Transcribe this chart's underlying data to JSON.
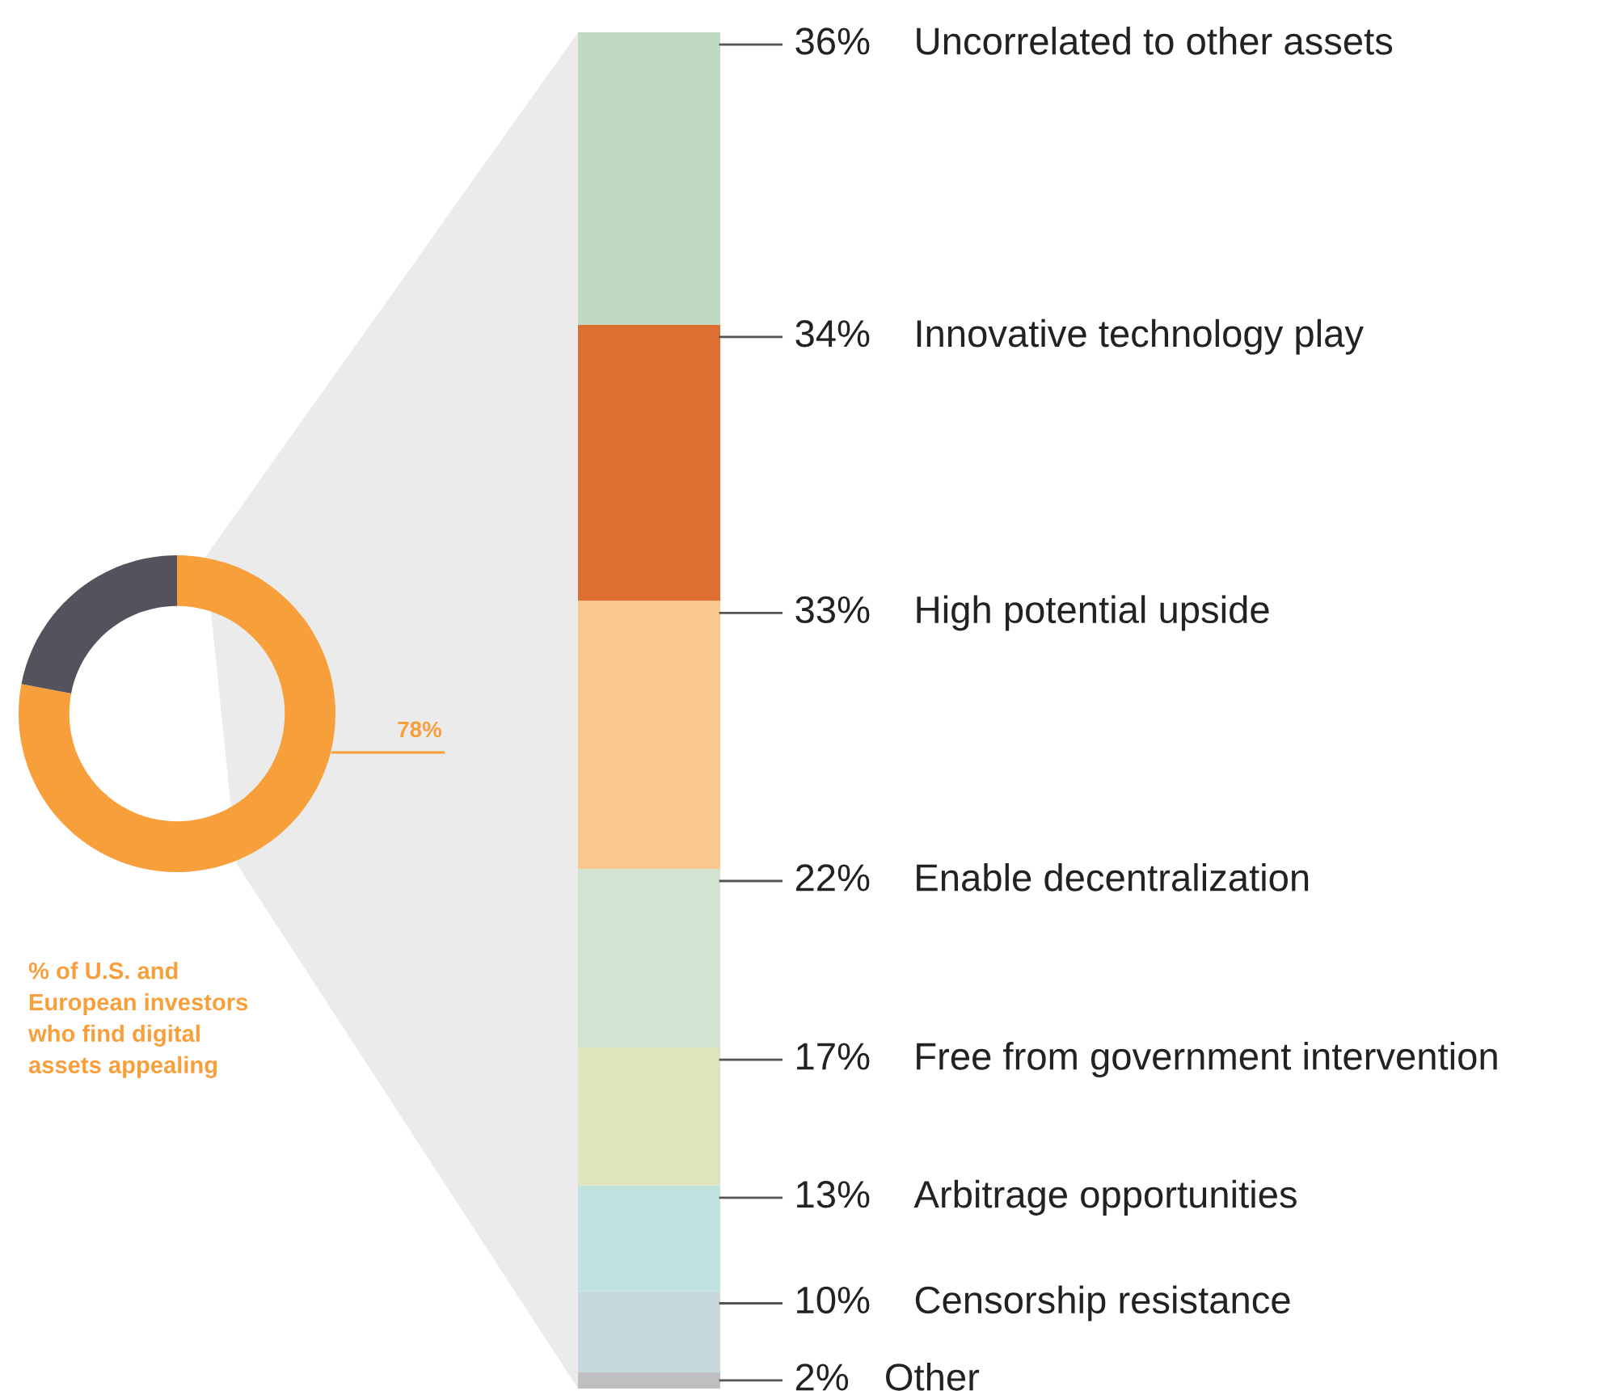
{
  "chart_data": [
    {
      "type": "donut",
      "categories": [
        null,
        null
      ],
      "values": [
        78,
        22
      ],
      "colors": [
        "#f79f3a",
        "#54525d"
      ],
      "value_labels": [
        "78%",
        null
      ],
      "annotations": [
        "% of U.S. and\nEuropean investors\nwho find digital\nassets appealing"
      ]
    },
    {
      "type": "bar",
      "stacked": true,
      "categories": [
        null
      ],
      "legend": false,
      "series": [
        {
          "name": "Other",
          "color": "#bebfc1",
          "values": [
            2
          ],
          "value_labels": [
            "2%"
          ]
        },
        {
          "name": "Censorship resistance",
          "color": "#c8d9de",
          "values": [
            10
          ],
          "value_labels": [
            "10%"
          ]
        },
        {
          "name": "Arbitrage opportunities",
          "color": "#c0e3df",
          "values": [
            13
          ],
          "value_labels": [
            "13%"
          ]
        },
        {
          "name": "Free from government intervention",
          "color": "#dde5bc",
          "values": [
            17
          ],
          "value_labels": [
            "17%"
          ]
        },
        {
          "name": "Enable decentralization",
          "color": "#d3e3d2",
          "values": [
            22
          ],
          "value_labels": [
            "22%"
          ]
        },
        {
          "name": "High potential upside",
          "color": "#fbc98f",
          "values": [
            33
          ],
          "value_labels": [
            "33%"
          ]
        },
        {
          "name": "Innovative technology play",
          "color": "#dd6f33",
          "values": [
            34
          ],
          "value_labels": [
            "34%"
          ]
        },
        {
          "name": "Uncorrelated to other assets",
          "color": "#c0d9c1",
          "values": [
            36
          ],
          "value_labels": [
            "36%"
          ]
        }
      ]
    }
  ]
}
